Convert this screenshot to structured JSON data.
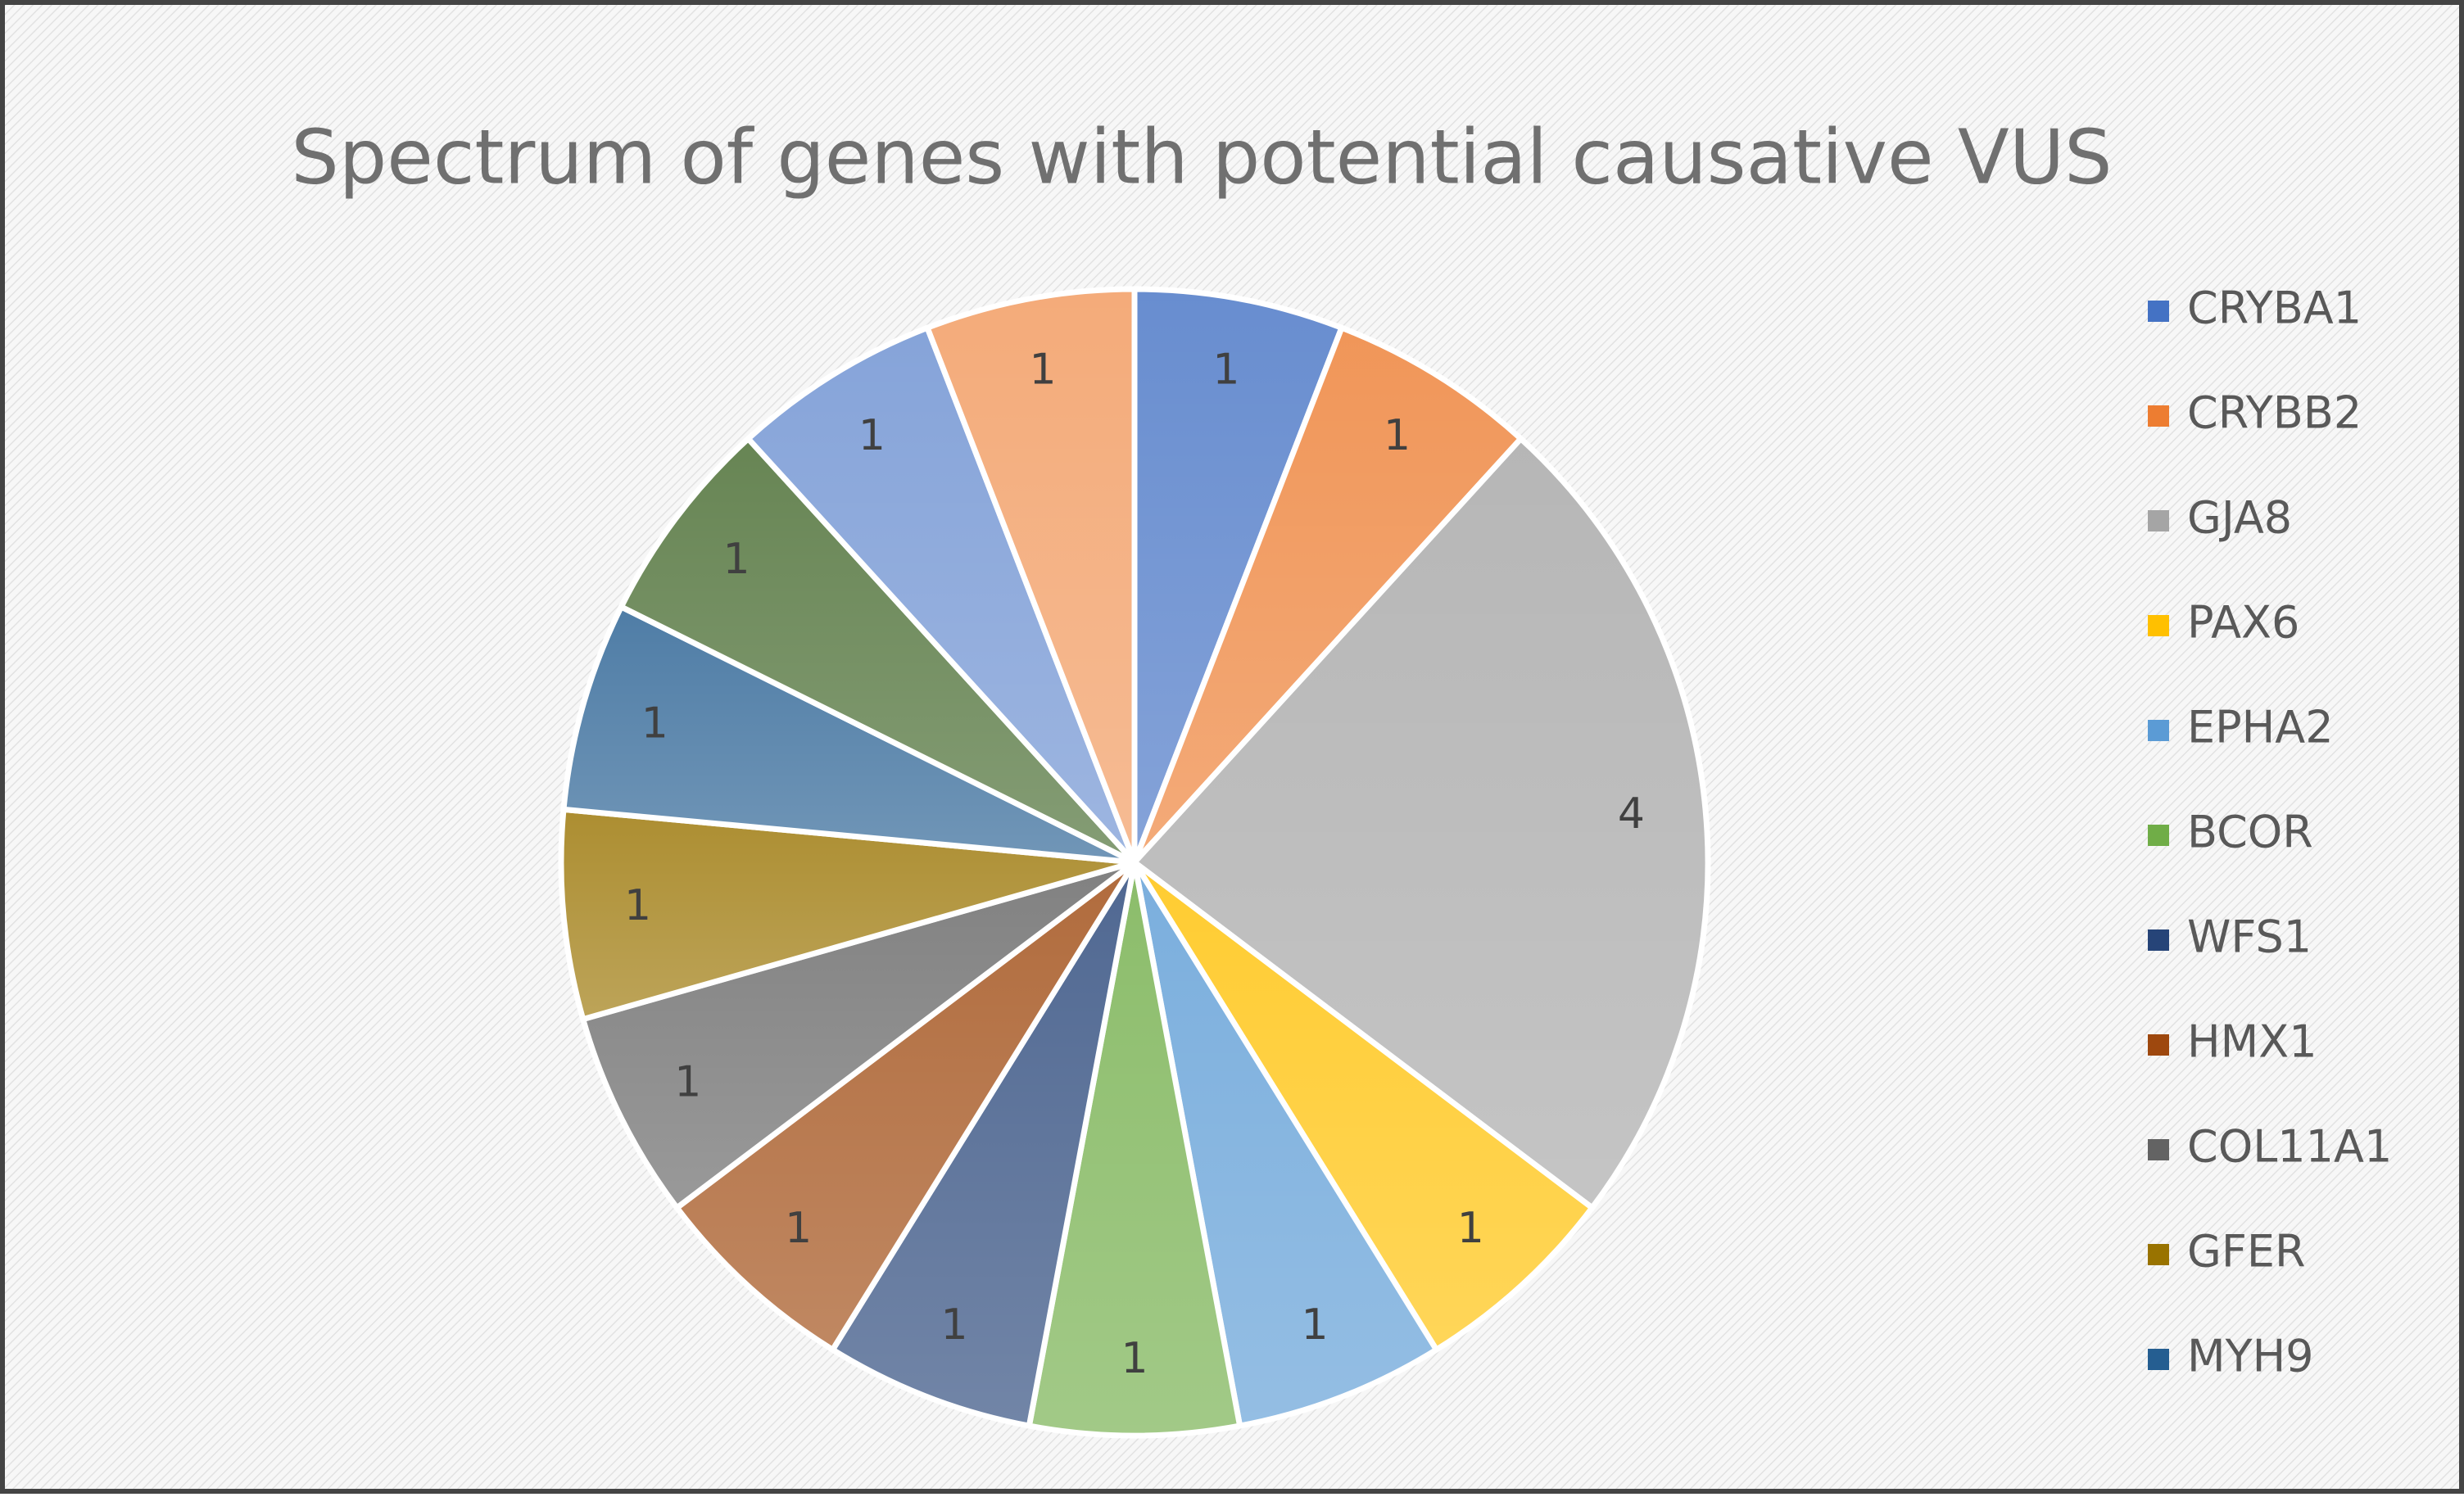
{
  "chart_data": {
    "type": "pie",
    "title": "Spectrum of genes with potential causative VUS",
    "categories": [
      "CRYBA1",
      "CRYBB2",
      "GJA8",
      "PAX6",
      "EPHA2",
      "BCOR",
      "WFS1",
      "HMX1",
      "COL11A1",
      "GFER",
      "MYH9",
      null,
      null,
      null
    ],
    "values": [
      1,
      1,
      4,
      1,
      1,
      1,
      1,
      1,
      1,
      1,
      1,
      1,
      1,
      1
    ],
    "colors": [
      "#4472c4",
      "#ed7d31",
      "#a5a5a5",
      "#ffc000",
      "#5b9bd5",
      "#70ad47",
      "#264478",
      "#9e480e",
      "#636363",
      "#997300",
      "#255e91",
      "#43682b",
      "#698ed0",
      "#f1975a"
    ],
    "legend": "right"
  }
}
